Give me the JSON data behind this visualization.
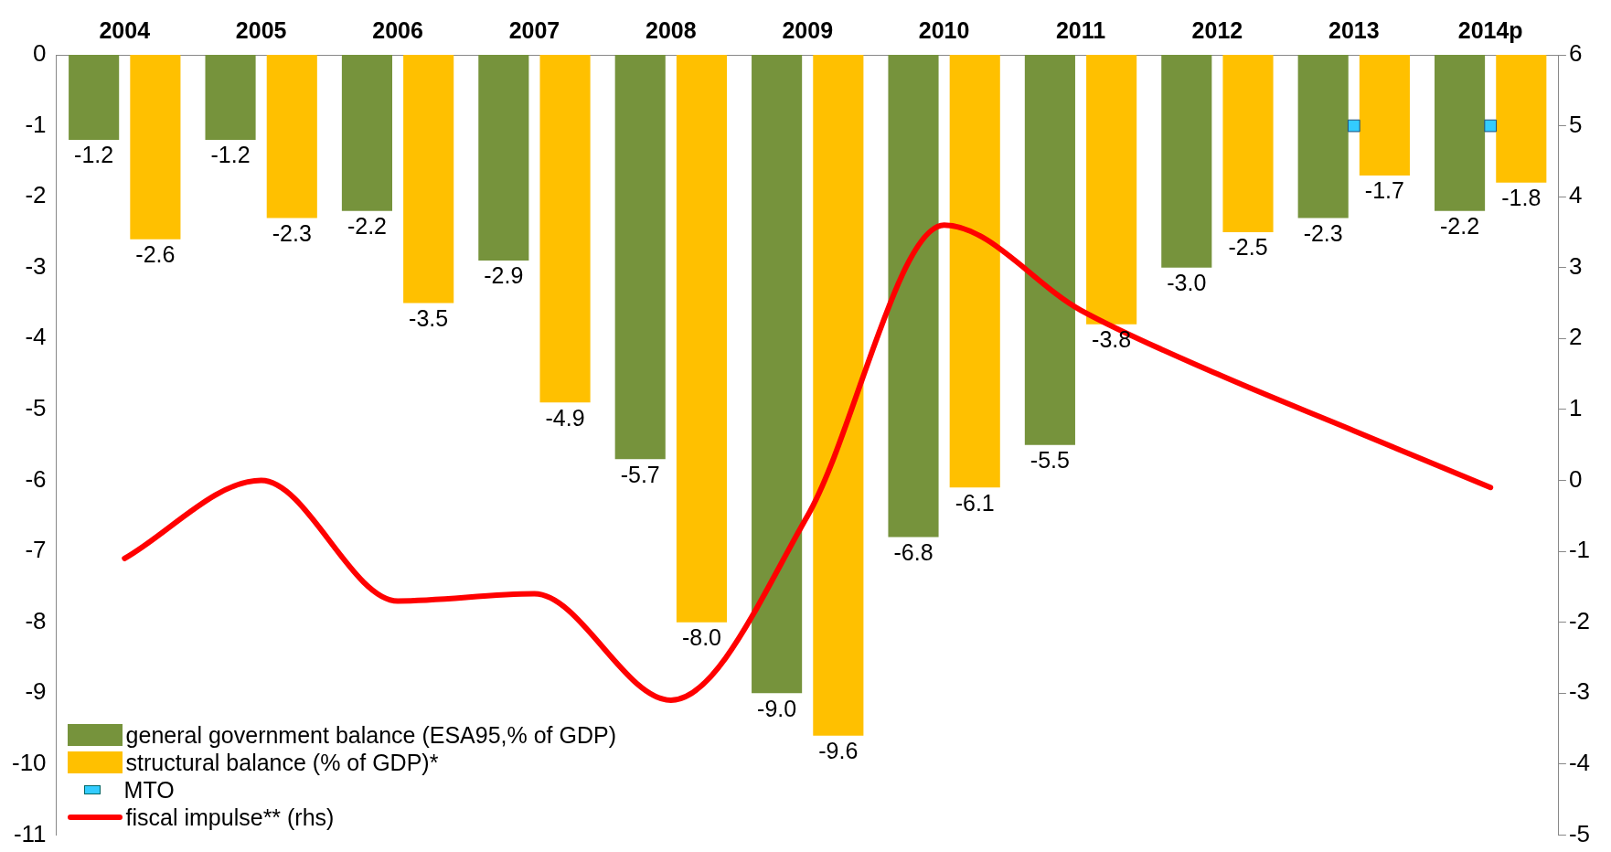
{
  "chart_data": {
    "type": "bar",
    "categories": [
      "2004",
      "2005",
      "2006",
      "2007",
      "2008",
      "2009",
      "2010",
      "2011",
      "2012",
      "2013",
      "2014p"
    ],
    "series": [
      {
        "name": "general government balance (ESA95,% of GDP)",
        "color": "#76933c",
        "values": [
          -1.2,
          -1.2,
          -2.2,
          -2.9,
          -5.7,
          -9.0,
          -6.8,
          -5.5,
          -3.0,
          -2.3,
          -2.2
        ],
        "value_labels": [
          "-1.2",
          "-1.2",
          "-2.2",
          "-2.9",
          "-5.7",
          "-9.0",
          "-6.8",
          "-5.5",
          "-3.0",
          "-2.3",
          "-2.2"
        ]
      },
      {
        "name": "structural balance (% of GDP)*",
        "color": "#ffc000",
        "values": [
          -2.6,
          -2.3,
          -3.5,
          -4.9,
          -8.0,
          -9.6,
          -6.1,
          -3.8,
          -2.5,
          -1.7,
          -1.8
        ],
        "value_labels": [
          "-2.6",
          "-2.3",
          "-3.5",
          "-4.9",
          "-8.0",
          "-9.6",
          "-6.1",
          "-3.8",
          "-2.5",
          "-1.7",
          "-1.8"
        ]
      },
      {
        "name": "MTO",
        "type": "scatter",
        "marker": "square",
        "color": "#33ccff",
        "values": [
          null,
          null,
          null,
          null,
          null,
          null,
          null,
          null,
          null,
          -1,
          -1
        ]
      },
      {
        "name": "fiscal impulse** (rhs)",
        "type": "line",
        "axis": "y2",
        "marker": "none",
        "color": "#ff0000",
        "values": [
          -1.1,
          0.0,
          -1.7,
          -1.6,
          -3.1,
          -0.5,
          3.6,
          2.4,
          1.5,
          0.7,
          -0.1
        ]
      }
    ],
    "ylim": [
      -11,
      0
    ],
    "yticks": [
      0,
      -1,
      -2,
      -3,
      -4,
      -5,
      -6,
      -7,
      -8,
      -9,
      -10,
      -11
    ],
    "y2lim": [
      -5,
      6
    ],
    "y2ticks": [
      6,
      5,
      4,
      3,
      2,
      1,
      0,
      -1,
      -2,
      -3,
      -4,
      -5
    ],
    "grid": false,
    "legend": "bottom left"
  }
}
